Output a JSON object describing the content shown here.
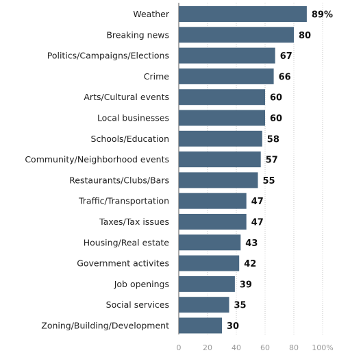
{
  "chart_data": {
    "type": "bar",
    "orientation": "horizontal",
    "categories": [
      "Weather",
      "Breaking news",
      "Politics/Campaigns/Elections",
      "Crime",
      "Arts/Cultural events",
      "Local businesses",
      "Schools/Education",
      "Community/Neighborhood events",
      "Restaurants/Clubs/Bars",
      "Traffic/Transportation",
      "Taxes/Tax issues",
      "Housing/Real estate",
      "Government activites",
      "Job openings",
      "Social services",
      "Zoning/Building/Development"
    ],
    "values": [
      89,
      80,
      67,
      66,
      60,
      60,
      58,
      57,
      55,
      47,
      47,
      43,
      42,
      39,
      35,
      30
    ],
    "value_labels": [
      "89%",
      "80",
      "67",
      "66",
      "60",
      "60",
      "58",
      "57",
      "55",
      "47",
      "47",
      "43",
      "42",
      "39",
      "35",
      "30"
    ],
    "xlim": [
      0,
      100
    ],
    "x_ticks": [
      0,
      20,
      40,
      60,
      80,
      100
    ],
    "x_tick_labels": [
      "0",
      "20",
      "40",
      "60",
      "80",
      "100%"
    ],
    "grid": true,
    "grid_style": "dotted-vertical",
    "bar_color": "#4a6882",
    "title": "",
    "xlabel": "",
    "ylabel": ""
  }
}
